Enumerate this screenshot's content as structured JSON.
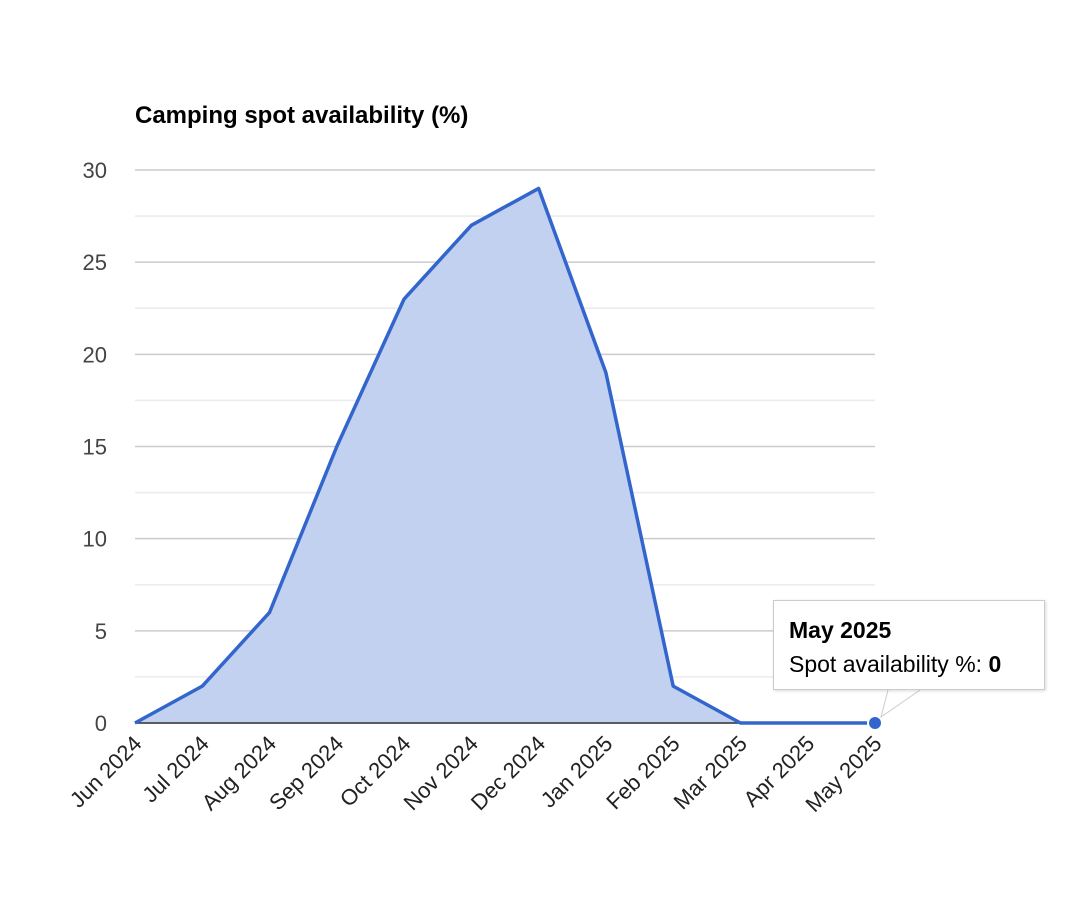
{
  "chart_data": {
    "type": "area",
    "title": "Camping spot availability (%)",
    "xlabel": "",
    "ylabel": "",
    "ylim": [
      0,
      30
    ],
    "yticks": [
      "0",
      "5",
      "10",
      "15",
      "20",
      "25",
      "30"
    ],
    "grid": true,
    "legend": "none",
    "categories": [
      "Jun 2024",
      "Jul 2024",
      "Aug 2024",
      "Sep 2024",
      "Oct 2024",
      "Nov 2024",
      "Dec 2024",
      "Jan 2025",
      "Feb 2025",
      "Mar 2025",
      "Apr 2025",
      "May 2025"
    ],
    "series": [
      {
        "name": "Spot availability %",
        "values": [
          0,
          2,
          6,
          15,
          23,
          27,
          29,
          19,
          2,
          0,
          0,
          0
        ],
        "color": "#3366cc",
        "fill": "#c2d1f0"
      }
    ],
    "tooltip": {
      "title": "May 2025",
      "label": "Spot availability %:",
      "value": "0"
    }
  }
}
